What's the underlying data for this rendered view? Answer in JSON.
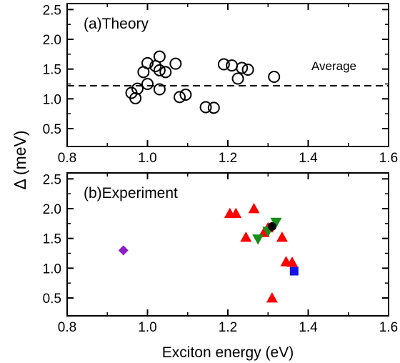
{
  "colors": {
    "red": "#ff0000",
    "green": "#1a8c1a",
    "purple": "#8c1ec8",
    "blue": "#1414e6",
    "black": "#000000"
  },
  "ylabel": "Δ (meV)",
  "chart_data": [
    {
      "type": "scatter",
      "panel_label": "(a)Theory",
      "xlim": [
        0.8,
        1.6
      ],
      "ylim": [
        0.2,
        2.6
      ],
      "xticks": [
        "0.8",
        "1.0",
        "1.2",
        "1.4",
        "1.6"
      ],
      "yticks": [
        "0.5",
        "1.0",
        "1.5",
        "2.0",
        "2.5"
      ],
      "average": {
        "label": "Average",
        "value": 1.22
      },
      "series": [
        {
          "marker": "open-circle",
          "color": "#000000",
          "points": [
            [
              0.96,
              1.1
            ],
            [
              0.97,
              1.01
            ],
            [
              0.975,
              1.17
            ],
            [
              0.99,
              1.45
            ],
            [
              1.0,
              1.6
            ],
            [
              1.0,
              1.25
            ],
            [
              1.02,
              1.55
            ],
            [
              1.03,
              1.48
            ],
            [
              1.03,
              1.71
            ],
            [
              1.03,
              1.16
            ],
            [
              1.045,
              1.45
            ],
            [
              1.07,
              1.59
            ],
            [
              1.08,
              1.03
            ],
            [
              1.095,
              1.07
            ],
            [
              1.145,
              0.86
            ],
            [
              1.165,
              0.85
            ],
            [
              1.19,
              1.58
            ],
            [
              1.21,
              1.56
            ],
            [
              1.225,
              1.34
            ],
            [
              1.235,
              1.52
            ],
            [
              1.25,
              1.49
            ],
            [
              1.315,
              1.37
            ]
          ]
        }
      ]
    },
    {
      "type": "scatter",
      "panel_label": "(b)Experiment",
      "xlabel": "Exciton energy (eV)",
      "xlim": [
        0.8,
        1.6
      ],
      "ylim": [
        0.2,
        2.6
      ],
      "xticks": [
        "0.8",
        "1.0",
        "1.2",
        "1.4",
        "1.6"
      ],
      "yticks": [
        "0.5",
        "1.0",
        "1.5",
        "2.0",
        "2.5"
      ],
      "series": [
        {
          "marker": "triangle-up",
          "color": "#ff0000",
          "points": [
            [
              1.205,
              1.92
            ],
            [
              1.22,
              1.92
            ],
            [
              1.245,
              1.52
            ],
            [
              1.265,
              2.0
            ],
            [
              1.29,
              1.6
            ],
            [
              1.3,
              1.68
            ],
            [
              1.335,
              1.52
            ],
            [
              1.345,
              1.11
            ],
            [
              1.36,
              1.1
            ],
            [
              1.31,
              0.5
            ]
          ]
        },
        {
          "marker": "triangle-down",
          "color": "#1a8c1a",
          "points": [
            [
              1.275,
              1.49
            ],
            [
              1.3,
              1.62
            ],
            [
              1.32,
              1.77
            ]
          ]
        },
        {
          "marker": "filled-circle",
          "color": "#000000",
          "points": [
            [
              1.31,
              1.7
            ]
          ]
        },
        {
          "marker": "diamond",
          "color": "#8c1ec8",
          "points": [
            [
              0.94,
              1.3
            ]
          ]
        },
        {
          "marker": "square",
          "color": "#1414e6",
          "points": [
            [
              1.365,
              0.95
            ]
          ]
        }
      ]
    }
  ]
}
